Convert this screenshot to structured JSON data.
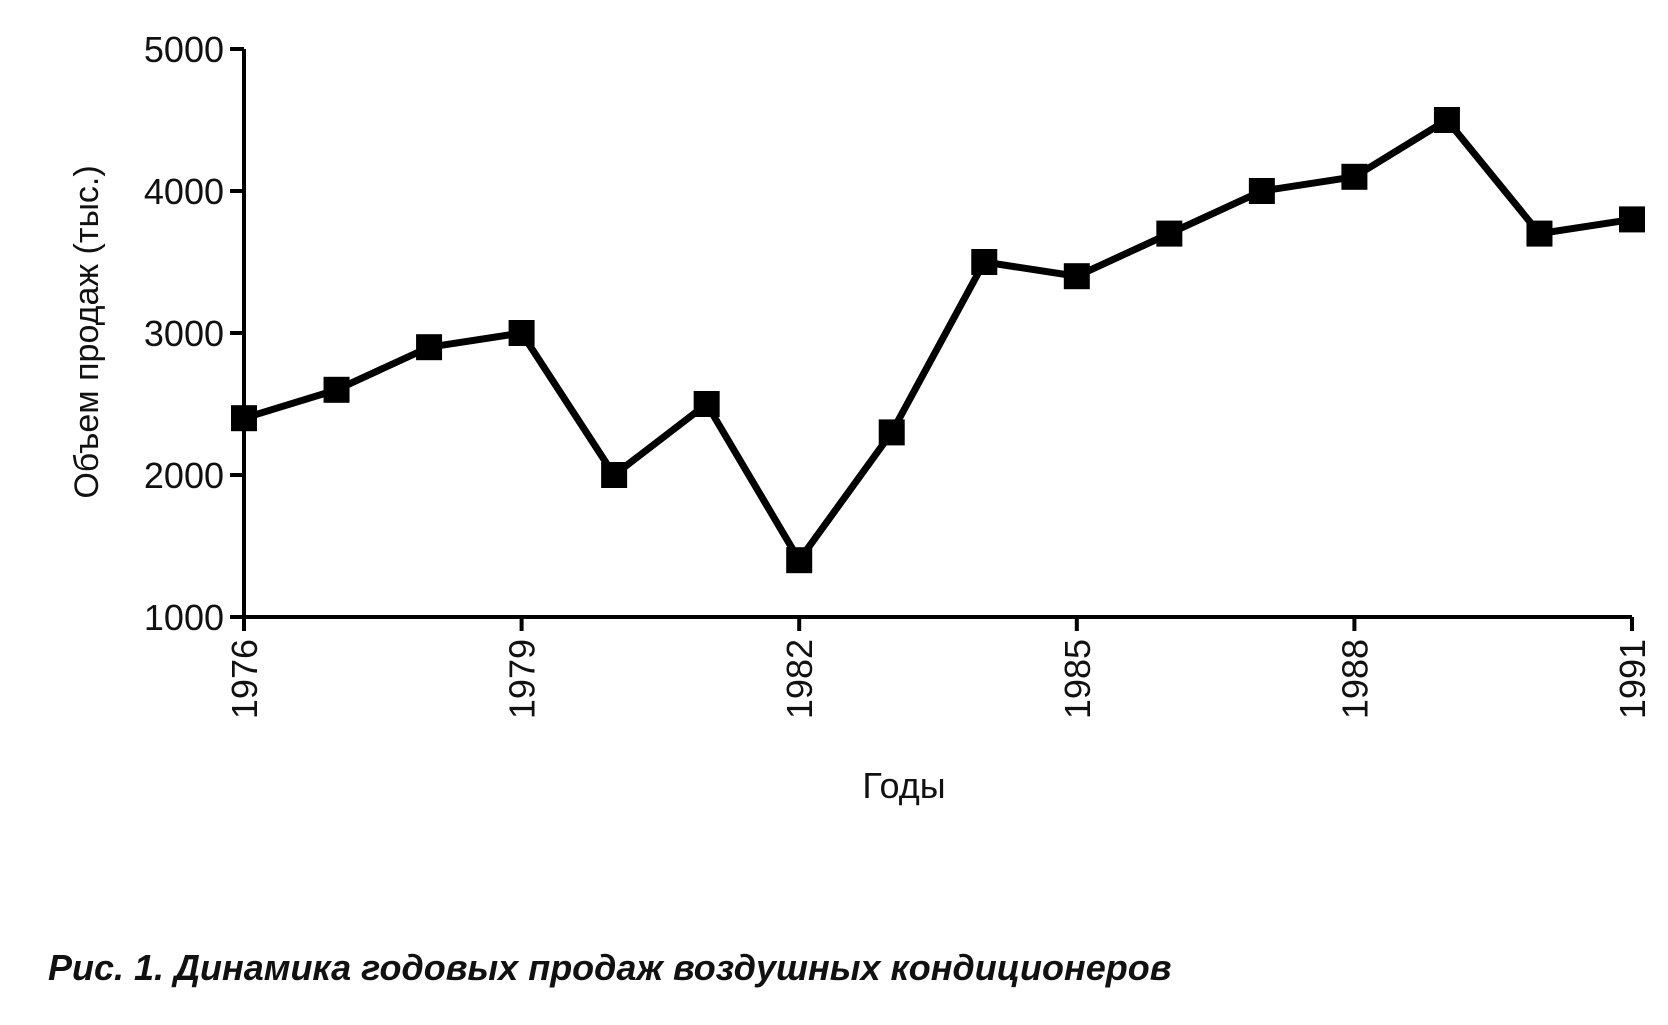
{
  "chart_data": {
    "type": "line",
    "title": "Рис. 1. Динамика годовых продаж воздушных кондиционеров",
    "x_label": "Годы",
    "y_label": "Объем продаж (тыс.)",
    "x": [
      1976,
      1977,
      1978,
      1979,
      1980,
      1981,
      1982,
      1983,
      1984,
      1985,
      1986,
      1987,
      1988,
      1989,
      1990,
      1991
    ],
    "values": [
      2400,
      2600,
      2900,
      3000,
      2000,
      2500,
      1400,
      2300,
      3500,
      3400,
      3700,
      4000,
      4100,
      4500,
      3700,
      3800
    ],
    "color": "#000000",
    "xlim": [
      1976,
      1991
    ],
    "xticks": [
      1976,
      1979,
      1982,
      1985,
      1988,
      1991
    ],
    "ylim": [
      1000,
      5000
    ],
    "yticks": [
      1000,
      2000,
      3000,
      4000,
      5000
    ],
    "grid": false
  }
}
